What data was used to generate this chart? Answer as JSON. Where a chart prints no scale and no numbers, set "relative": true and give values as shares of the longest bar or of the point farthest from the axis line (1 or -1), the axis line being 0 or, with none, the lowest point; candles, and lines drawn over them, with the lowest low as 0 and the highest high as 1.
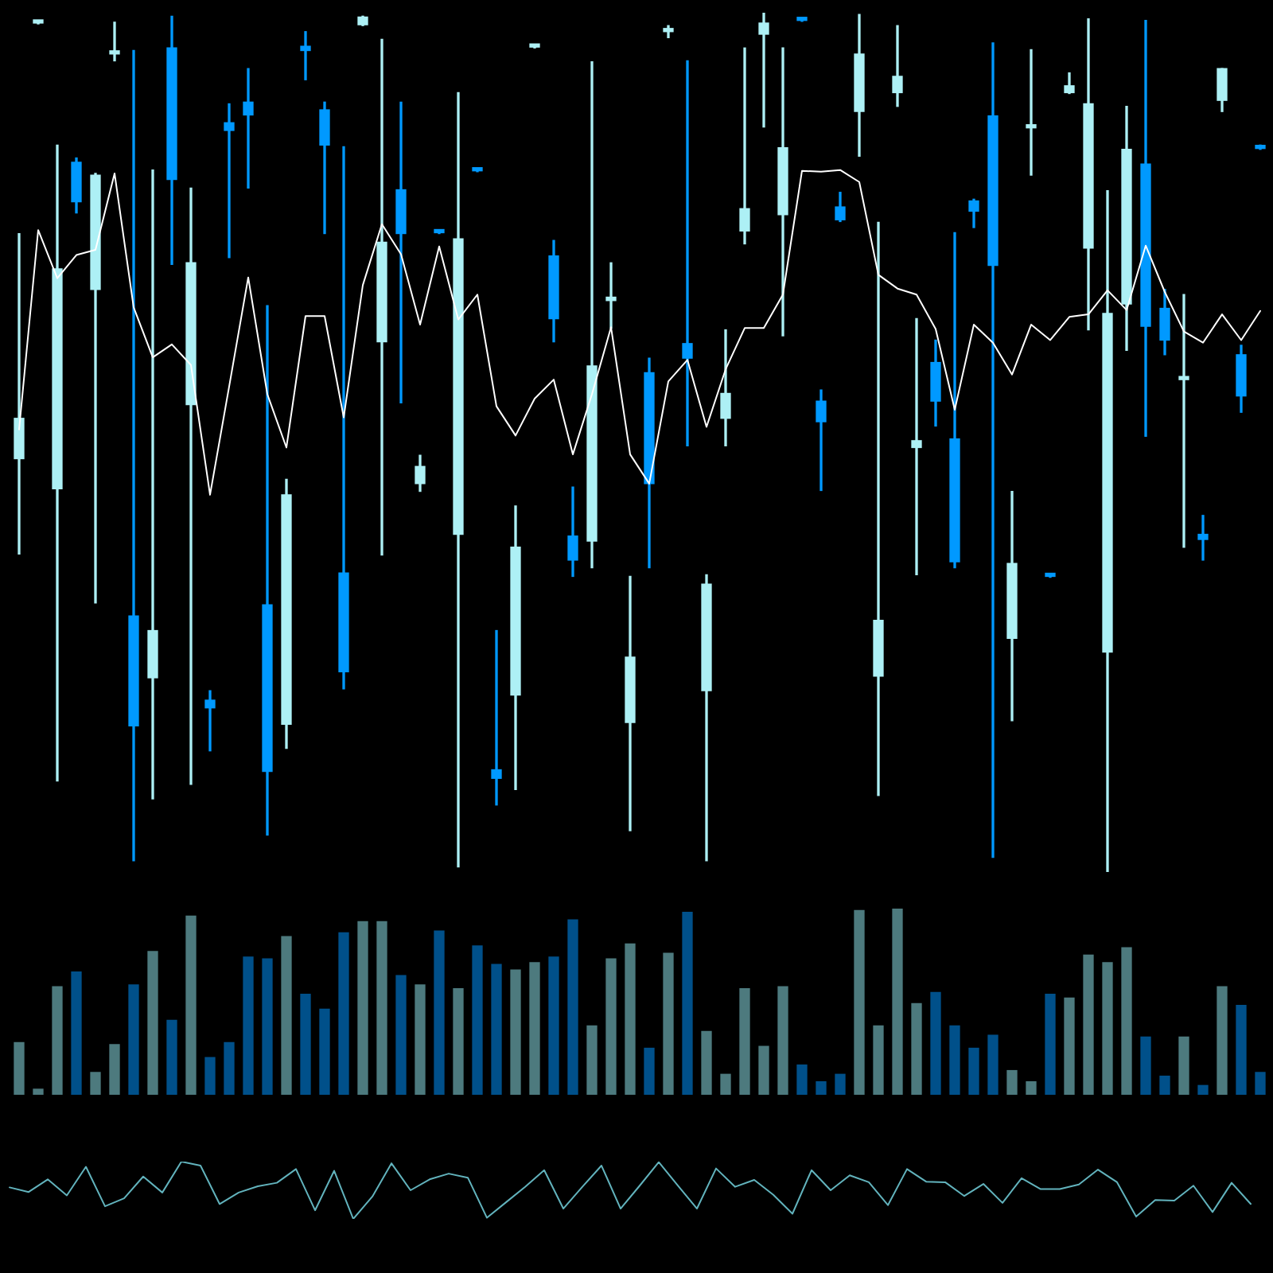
{
  "chart_data": [
    {
      "type": "candlestick",
      "relative": true,
      "categories": [
        null,
        null,
        null,
        null,
        null,
        null,
        null,
        null,
        null,
        null,
        null,
        null,
        null,
        null,
        null,
        null,
        null,
        null,
        null,
        null,
        null,
        null,
        null,
        null,
        null,
        null,
        null,
        null,
        null,
        null,
        null,
        null,
        null,
        null,
        null,
        null,
        null,
        null,
        null,
        null,
        null,
        null,
        null,
        null,
        null,
        null,
        null,
        null,
        null,
        null,
        null,
        null,
        null,
        null,
        null,
        null,
        null,
        null,
        null,
        null,
        null,
        null,
        null,
        null,
        null,
        null
      ],
      "ohlc": [
        [
          0.481,
          0.743,
          0.37,
          0.528
        ],
        [
          0.988,
          0.99,
          0.987,
          0.989
        ],
        [
          0.446,
          0.846,
          0.106,
          0.702
        ],
        [
          0.826,
          0.831,
          0.767,
          0.78
        ],
        [
          0.678,
          0.813,
          0.313,
          0.811
        ],
        [
          0.952,
          0.989,
          0.944,
          0.954
        ],
        [
          0.298,
          0.956,
          0.013,
          0.17
        ],
        [
          0.226,
          0.817,
          0.085,
          0.281
        ],
        [
          0.959,
          0.996,
          0.707,
          0.806
        ],
        [
          0.544,
          0.796,
          0.102,
          0.709
        ],
        [
          0.2,
          0.211,
          0.141,
          0.191
        ],
        [
          0.872,
          0.894,
          0.715,
          0.863
        ],
        [
          0.896,
          0.935,
          0.796,
          0.881
        ],
        [
          0.311,
          0.659,
          0.043,
          0.117
        ],
        [
          0.172,
          0.457,
          0.144,
          0.439
        ],
        [
          0.961,
          0.978,
          0.922,
          0.956
        ],
        [
          0.887,
          0.896,
          0.743,
          0.846
        ],
        [
          0.348,
          0.844,
          0.213,
          0.233
        ],
        [
          0.986,
          0.996,
          0.985,
          0.995
        ],
        [
          0.617,
          0.969,
          0.369,
          0.733
        ],
        [
          0.794,
          0.896,
          0.546,
          0.743
        ],
        [
          0.452,
          0.485,
          0.443,
          0.472
        ],
        [
          0.745,
          0.746,
          0.743,
          0.744
        ],
        [
          0.393,
          0.907,
          0.006,
          0.737
        ],
        [
          0.817,
          0.818,
          0.815,
          0.816
        ],
        [
          0.119,
          0.281,
          0.078,
          0.109
        ],
        [
          0.206,
          0.426,
          0.096,
          0.378
        ],
        [
          0.96,
          0.963,
          0.959,
          0.962
        ],
        [
          0.717,
          0.735,
          0.617,
          0.644
        ],
        [
          0.391,
          0.448,
          0.344,
          0.363
        ],
        [
          0.385,
          0.943,
          0.354,
          0.589
        ],
        [
          0.665,
          0.709,
          0.633,
          0.669
        ],
        [
          0.174,
          0.344,
          0.048,
          0.25
        ],
        [
          0.581,
          0.598,
          0.354,
          0.452
        ],
        [
          0.978,
          0.985,
          0.971,
          0.98
        ],
        [
          0.615,
          0.944,
          0.496,
          0.598
        ],
        [
          0.211,
          0.346,
          0.013,
          0.335
        ],
        [
          0.528,
          0.631,
          0.496,
          0.557
        ],
        [
          0.746,
          0.959,
          0.731,
          0.772
        ],
        [
          0.975,
          1,
          0.867,
          0.988
        ],
        [
          0.765,
          0.959,
          0.624,
          0.843
        ],
        [
          0.993,
          0.994,
          0.99,
          0.991
        ],
        [
          0.548,
          0.561,
          0.444,
          0.524
        ],
        [
          0.774,
          0.791,
          0.757,
          0.759
        ],
        [
          0.885,
          0.998,
          0.833,
          0.952
        ],
        [
          0.228,
          0.756,
          0.089,
          0.293
        ],
        [
          0.907,
          0.985,
          0.891,
          0.926
        ],
        [
          0.494,
          0.644,
          0.346,
          0.502
        ],
        [
          0.593,
          0.619,
          0.519,
          0.548
        ],
        [
          0.504,
          0.744,
          0.354,
          0.361
        ],
        [
          0.781,
          0.783,
          0.75,
          0.769
        ],
        [
          0.88,
          0.965,
          0.017,
          0.706
        ],
        [
          0.272,
          0.443,
          0.176,
          0.359
        ],
        [
          0.866,
          0.957,
          0.811,
          0.868
        ],
        [
          0.345,
          0.346,
          0.343,
          0.344
        ],
        [
          0.907,
          0.93,
          0.906,
          0.915
        ],
        [
          0.726,
          0.993,
          0.631,
          0.894
        ],
        [
          0.256,
          0.793,
          0,
          0.65
        ],
        [
          0.661,
          0.891,
          0.607,
          0.841
        ],
        [
          0.824,
          0.991,
          0.507,
          0.635
        ],
        [
          0.656,
          0.678,
          0.602,
          0.619
        ],
        [
          0.573,
          0.672,
          0.378,
          0.575
        ],
        [
          0.393,
          0.415,
          0.363,
          0.387
        ],
        [
          0.898,
          0.935,
          0.885,
          0.935
        ],
        [
          0.602,
          0.613,
          0.535,
          0.554
        ],
        [
          0.844,
          0.846,
          0.841,
          0.842
        ]
      ],
      "colors": [
        "#adf0f5",
        "#adf0f5",
        "#adf0f5",
        "#0099ff",
        "#adf0f5",
        "#adf0f5",
        "#0099ff",
        "#adf0f5",
        "#0099ff",
        "#adf0f5",
        "#0099ff",
        "#0099ff",
        "#0099ff",
        "#0099ff",
        "#adf0f5",
        "#0099ff",
        "#0099ff",
        "#0099ff",
        "#adf0f5",
        "#adf0f5",
        "#0099ff",
        "#adf0f5",
        "#0099ff",
        "#adf0f5",
        "#0099ff",
        "#0099ff",
        "#adf0f5",
        "#adf0f5",
        "#0099ff",
        "#0099ff",
        "#adf0f5",
        "#adf0f5",
        "#adf0f5",
        "#0099ff",
        "#adf0f5",
        "#0099ff",
        "#adf0f5",
        "#adf0f5",
        "#adf0f5",
        "#adf0f5",
        "#adf0f5",
        "#0099ff",
        "#0099ff",
        "#0099ff",
        "#adf0f5",
        "#adf0f5",
        "#adf0f5",
        "#adf0f5",
        "#0099ff",
        "#0099ff",
        "#0099ff",
        "#0099ff",
        "#adf0f5",
        "#adf0f5",
        "#0099ff",
        "#adf0f5",
        "#adf0f5",
        "#adf0f5",
        "#adf0f5",
        "#0099ff",
        "#0099ff",
        "#adf0f5",
        "#0099ff",
        "#adf0f5",
        "#0099ff",
        "#0099ff"
      ],
      "series": [
        {
          "type": "line",
          "color": "#ffffff",
          "values": [
            0.515,
            0.747,
            0.691,
            0.718,
            0.724,
            0.813,
            0.657,
            0.599,
            0.614,
            0.59,
            0.439,
            0.565,
            0.692,
            0.556,
            0.494,
            0.647,
            0.647,
            0.529,
            0.683,
            0.754,
            0.719,
            0.637,
            0.728,
            0.643,
            0.672,
            0.542,
            0.508,
            0.551,
            0.573,
            0.486,
            0.556,
            0.634,
            0.486,
            0.452,
            0.571,
            0.596,
            0.518,
            0.585,
            0.633,
            0.633,
            0.672,
            0.816,
            0.815,
            0.817,
            0.803,
            0.695,
            0.679,
            0.672,
            0.632,
            0.538,
            0.637,
            0.616,
            0.579,
            0.637,
            0.619,
            0.646,
            0.649,
            0.677,
            0.654,
            0.729,
            0.675,
            0.629,
            0.616,
            0.649,
            0.619,
            0.653
          ]
        }
      ]
    },
    {
      "type": "bar",
      "relative": true,
      "categories": [
        null,
        null,
        null,
        null,
        null,
        null,
        null,
        null,
        null,
        null,
        null,
        null,
        null,
        null,
        null,
        null,
        null,
        null,
        null,
        null,
        null,
        null,
        null,
        null,
        null,
        null,
        null,
        null,
        null,
        null,
        null,
        null,
        null,
        null,
        null,
        null,
        null,
        null,
        null,
        null,
        null,
        null,
        null,
        null,
        null,
        null,
        null,
        null,
        null,
        null,
        null,
        null,
        null,
        null,
        null,
        null,
        null,
        null,
        null,
        null,
        null,
        null,
        null,
        null,
        null,
        null
      ],
      "values": [
        0.28,
        0.03,
        0.58,
        0.66,
        0.12,
        0.27,
        0.59,
        0.77,
        0.4,
        0.96,
        0.2,
        0.28,
        0.74,
        0.73,
        0.85,
        0.54,
        0.46,
        0.87,
        0.93,
        0.93,
        0.64,
        0.59,
        0.88,
        0.57,
        0.8,
        0.7,
        0.67,
        0.71,
        0.74,
        0.94,
        0.37,
        0.73,
        0.81,
        0.25,
        0.76,
        0.98,
        0.34,
        0.11,
        0.57,
        0.26,
        0.58,
        0.16,
        0.07,
        0.11,
        0.99,
        0.37,
        1,
        0.49,
        0.55,
        0.37,
        0.25,
        0.32,
        0.13,
        0.07,
        0.54,
        0.52,
        0.75,
        0.71,
        0.79,
        0.31,
        0.1,
        0.31,
        0.05,
        0.58,
        0.48,
        0.12
      ],
      "colors": [
        "#4d7a7e",
        "#4d7a7e",
        "#4d7a7e",
        "#00508a",
        "#4d7a7e",
        "#4d7a7e",
        "#00508a",
        "#4d7a7e",
        "#00508a",
        "#4d7a7e",
        "#00508a",
        "#00508a",
        "#00508a",
        "#00508a",
        "#4d7a7e",
        "#00508a",
        "#00508a",
        "#00508a",
        "#4d7a7e",
        "#4d7a7e",
        "#00508a",
        "#4d7a7e",
        "#00508a",
        "#4d7a7e",
        "#00508a",
        "#00508a",
        "#4d7a7e",
        "#4d7a7e",
        "#00508a",
        "#00508a",
        "#4d7a7e",
        "#4d7a7e",
        "#4d7a7e",
        "#00508a",
        "#4d7a7e",
        "#00508a",
        "#4d7a7e",
        "#4d7a7e",
        "#4d7a7e",
        "#4d7a7e",
        "#4d7a7e",
        "#00508a",
        "#00508a",
        "#00508a",
        "#4d7a7e",
        "#4d7a7e",
        "#4d7a7e",
        "#4d7a7e",
        "#00508a",
        "#00508a",
        "#00508a",
        "#00508a",
        "#4d7a7e",
        "#4d7a7e",
        "#00508a",
        "#4d7a7e",
        "#4d7a7e",
        "#4d7a7e",
        "#4d7a7e",
        "#00508a",
        "#00508a",
        "#4d7a7e",
        "#00508a",
        "#4d7a7e",
        "#00508a",
        "#00508a"
      ]
    },
    {
      "type": "line",
      "relative": true,
      "color": "#62b3bd",
      "categories": [
        null,
        null,
        null,
        null,
        null,
        null,
        null,
        null,
        null,
        null,
        null,
        null,
        null,
        null,
        null,
        null,
        null,
        null,
        null,
        null,
        null,
        null,
        null,
        null,
        null,
        null,
        null,
        null,
        null,
        null,
        null,
        null,
        null,
        null,
        null,
        null,
        null,
        null,
        null,
        null,
        null,
        null,
        null,
        null,
        null,
        null,
        null,
        null,
        null,
        null,
        null,
        null,
        null,
        null,
        null,
        null,
        null,
        null,
        null,
        null,
        null,
        null,
        null,
        null,
        null,
        null
      ],
      "values": [
        0.55,
        0.47,
        0.69,
        0.41,
        0.91,
        0.22,
        0.36,
        0.74,
        0.46,
        1,
        0.93,
        0.26,
        0.46,
        0.57,
        0.63,
        0.87,
        0.15,
        0.84,
        0,
        0.39,
        0.97,
        0.5,
        0.69,
        0.79,
        0.72,
        0.02,
        0.29,
        0.56,
        0.85,
        0.18,
        0.56,
        0.93,
        0.18,
        0.58,
        0.99,
        0.58,
        0.18,
        0.88,
        0.56,
        0.68,
        0.42,
        0.09,
        0.85,
        0.5,
        0.76,
        0.64,
        0.24,
        0.87,
        0.65,
        0.64,
        0.4,
        0.61,
        0.28,
        0.71,
        0.52,
        0.52,
        0.6,
        0.86,
        0.64,
        0.04,
        0.33,
        0.32,
        0.58,
        0.12,
        0.63,
        0.26
      ]
    }
  ]
}
